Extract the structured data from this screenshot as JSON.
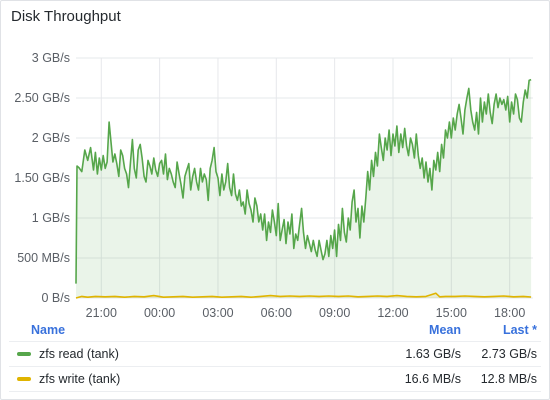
{
  "panel": {
    "title": "Disk Throughput"
  },
  "chart_data": {
    "type": "area",
    "title": "Disk Throughput",
    "y_ticks": [
      "0 B/s",
      "500 MB/s",
      "1 GB/s",
      "1.50 GB/s",
      "2 GB/s",
      "2.50 GB/s",
      "3 GB/s"
    ],
    "x_ticks": [
      "21:00",
      "00:00",
      "03:00",
      "06:00",
      "09:00",
      "12:00",
      "15:00",
      "18:00"
    ],
    "x_range_hours": [
      0,
      23.5
    ],
    "ylim_gbs": [
      0,
      3
    ],
    "series": [
      {
        "name": "zfs read (tank)",
        "color": "#56a64b",
        "points": [
          [
            0.0,
            0.18
          ],
          [
            0.05,
            1.65
          ],
          [
            0.15,
            1.63
          ],
          [
            0.3,
            1.58
          ],
          [
            0.45,
            1.85
          ],
          [
            0.6,
            1.72
          ],
          [
            0.75,
            1.88
          ],
          [
            0.9,
            1.6
          ],
          [
            1.0,
            1.82
          ],
          [
            1.1,
            1.55
          ],
          [
            1.2,
            1.75
          ],
          [
            1.3,
            1.6
          ],
          [
            1.4,
            1.78
          ],
          [
            1.5,
            1.62
          ],
          [
            1.6,
            1.7
          ],
          [
            1.7,
            2.2
          ],
          [
            1.8,
            1.95
          ],
          [
            1.9,
            1.7
          ],
          [
            2.0,
            1.8
          ],
          [
            2.1,
            1.68
          ],
          [
            2.2,
            1.52
          ],
          [
            2.3,
            1.85
          ],
          [
            2.4,
            1.78
          ],
          [
            2.5,
            1.62
          ],
          [
            2.6,
            1.55
          ],
          [
            2.7,
            1.38
          ],
          [
            2.8,
            1.7
          ],
          [
            2.9,
            1.98
          ],
          [
            3.0,
            1.62
          ],
          [
            3.1,
            1.5
          ],
          [
            3.2,
            1.85
          ],
          [
            3.3,
            1.92
          ],
          [
            3.4,
            1.75
          ],
          [
            3.5,
            1.52
          ],
          [
            3.6,
            1.45
          ],
          [
            3.7,
            1.72
          ],
          [
            3.8,
            1.65
          ],
          [
            3.9,
            1.55
          ],
          [
            4.0,
            1.75
          ],
          [
            4.1,
            1.6
          ],
          [
            4.2,
            1.52
          ],
          [
            4.3,
            1.68
          ],
          [
            4.4,
            1.72
          ],
          [
            4.5,
            1.55
          ],
          [
            4.6,
            1.8
          ],
          [
            4.7,
            1.48
          ],
          [
            4.8,
            1.62
          ],
          [
            4.9,
            1.55
          ],
          [
            5.0,
            1.45
          ],
          [
            5.1,
            1.38
          ],
          [
            5.2,
            1.7
          ],
          [
            5.3,
            1.55
          ],
          [
            5.4,
            1.42
          ],
          [
            5.5,
            1.25
          ],
          [
            5.6,
            1.52
          ],
          [
            5.7,
            1.6
          ],
          [
            5.8,
            1.68
          ],
          [
            5.9,
            1.35
          ],
          [
            6.0,
            1.52
          ],
          [
            6.1,
            1.62
          ],
          [
            6.2,
            1.45
          ],
          [
            6.3,
            1.35
          ],
          [
            6.4,
            1.62
          ],
          [
            6.5,
            1.45
          ],
          [
            6.6,
            1.55
          ],
          [
            6.7,
            1.48
          ],
          [
            6.8,
            1.22
          ],
          [
            6.9,
            1.62
          ],
          [
            7.0,
            1.72
          ],
          [
            7.1,
            1.88
          ],
          [
            7.2,
            1.58
          ],
          [
            7.3,
            1.5
          ],
          [
            7.4,
            1.28
          ],
          [
            7.5,
            1.55
          ],
          [
            7.6,
            1.35
          ],
          [
            7.7,
            1.45
          ],
          [
            7.8,
            1.68
          ],
          [
            7.9,
            1.38
          ],
          [
            8.0,
            1.28
          ],
          [
            8.1,
            1.55
          ],
          [
            8.2,
            1.3
          ],
          [
            8.3,
            1.22
          ],
          [
            8.4,
            1.35
          ],
          [
            8.5,
            1.15
          ],
          [
            8.6,
            1.2
          ],
          [
            8.7,
            1.05
          ],
          [
            8.8,
            1.35
          ],
          [
            8.9,
            1.18
          ],
          [
            9.0,
            1.1
          ],
          [
            9.1,
            0.95
          ],
          [
            9.2,
            1.25
          ],
          [
            9.3,
            1.15
          ],
          [
            9.4,
            0.95
          ],
          [
            9.5,
            1.05
          ],
          [
            9.6,
            0.85
          ],
          [
            9.7,
            1.05
          ],
          [
            9.8,
            0.72
          ],
          [
            9.9,
            0.95
          ],
          [
            10.0,
            0.82
          ],
          [
            10.1,
            1.1
          ],
          [
            10.2,
            0.95
          ],
          [
            10.3,
            0.78
          ],
          [
            10.4,
            1.18
          ],
          [
            10.5,
            0.72
          ],
          [
            10.6,
            0.85
          ],
          [
            10.7,
            0.98
          ],
          [
            10.8,
            0.68
          ],
          [
            10.9,
            0.95
          ],
          [
            11.0,
            0.8
          ],
          [
            11.1,
            1.05
          ],
          [
            11.2,
            0.62
          ],
          [
            11.3,
            0.8
          ],
          [
            11.4,
            0.72
          ],
          [
            11.5,
            0.92
          ],
          [
            11.6,
            1.12
          ],
          [
            11.7,
            0.82
          ],
          [
            11.8,
            0.62
          ],
          [
            11.9,
            0.78
          ],
          [
            12.0,
            0.68
          ],
          [
            12.1,
            0.58
          ],
          [
            12.2,
            0.72
          ],
          [
            12.3,
            0.6
          ],
          [
            12.4,
            0.52
          ],
          [
            12.5,
            0.72
          ],
          [
            12.6,
            0.6
          ],
          [
            12.7,
            0.48
          ],
          [
            12.8,
            0.55
          ],
          [
            12.9,
            0.72
          ],
          [
            13.0,
            0.52
          ],
          [
            13.1,
            0.78
          ],
          [
            13.2,
            0.62
          ],
          [
            13.3,
            0.85
          ],
          [
            13.4,
            0.52
          ],
          [
            13.5,
            0.92
          ],
          [
            13.6,
            0.72
          ],
          [
            13.7,
            1.12
          ],
          [
            13.8,
            0.82
          ],
          [
            13.9,
            0.7
          ],
          [
            14.0,
            1.0
          ],
          [
            14.1,
            0.85
          ],
          [
            14.2,
            1.2
          ],
          [
            14.3,
            1.35
          ],
          [
            14.4,
            0.95
          ],
          [
            14.5,
            1.12
          ],
          [
            14.6,
            0.75
          ],
          [
            14.7,
            1.15
          ],
          [
            14.8,
            0.95
          ],
          [
            14.9,
            1.25
          ],
          [
            15.0,
            1.58
          ],
          [
            15.1,
            1.35
          ],
          [
            15.2,
            1.72
          ],
          [
            15.3,
            1.52
          ],
          [
            15.4,
            1.82
          ],
          [
            15.5,
            1.65
          ],
          [
            15.6,
            2.05
          ],
          [
            15.7,
            1.88
          ],
          [
            15.8,
            1.72
          ],
          [
            15.9,
            2.0
          ],
          [
            16.0,
            1.85
          ],
          [
            16.1,
            2.1
          ],
          [
            16.2,
            1.78
          ],
          [
            16.3,
            2.05
          ],
          [
            16.4,
            1.9
          ],
          [
            16.5,
            2.15
          ],
          [
            16.6,
            1.82
          ],
          [
            16.7,
            2.05
          ],
          [
            16.8,
            1.88
          ],
          [
            16.9,
            2.12
          ],
          [
            17.0,
            1.9
          ],
          [
            17.1,
            1.78
          ],
          [
            17.2,
            2.0
          ],
          [
            17.3,
            1.92
          ],
          [
            17.4,
            1.75
          ],
          [
            17.5,
            2.05
          ],
          [
            17.6,
            1.78
          ],
          [
            17.7,
            1.62
          ],
          [
            17.8,
            1.75
          ],
          [
            17.9,
            1.5
          ],
          [
            18.0,
            1.7
          ],
          [
            18.1,
            1.45
          ],
          [
            18.2,
            1.62
          ],
          [
            18.3,
            1.35
          ],
          [
            18.4,
            1.72
          ],
          [
            18.5,
            1.6
          ],
          [
            18.6,
            1.82
          ],
          [
            18.7,
            1.58
          ],
          [
            18.8,
            1.92
          ],
          [
            18.9,
            1.75
          ],
          [
            19.0,
            2.1
          ],
          [
            19.1,
            2.0
          ],
          [
            19.2,
            2.2
          ],
          [
            19.3,
            2.0
          ],
          [
            19.4,
            2.25
          ],
          [
            19.5,
            2.1
          ],
          [
            19.6,
            2.3
          ],
          [
            19.7,
            2.42
          ],
          [
            19.8,
            2.25
          ],
          [
            19.9,
            2.05
          ],
          [
            20.0,
            2.35
          ],
          [
            20.1,
            2.5
          ],
          [
            20.2,
            2.62
          ],
          [
            20.3,
            2.35
          ],
          [
            20.4,
            2.2
          ],
          [
            20.5,
            2.1
          ],
          [
            20.6,
            2.32
          ],
          [
            20.7,
            2.05
          ],
          [
            20.8,
            2.5
          ],
          [
            20.9,
            2.2
          ],
          [
            21.0,
            2.45
          ],
          [
            21.1,
            2.3
          ],
          [
            21.2,
            2.55
          ],
          [
            21.3,
            2.32
          ],
          [
            21.4,
            2.18
          ],
          [
            21.5,
            2.42
          ],
          [
            21.6,
            2.55
          ],
          [
            21.7,
            2.38
          ],
          [
            21.8,
            2.5
          ],
          [
            21.9,
            2.42
          ],
          [
            22.0,
            2.48
          ],
          [
            22.1,
            2.35
          ],
          [
            22.2,
            2.52
          ],
          [
            22.3,
            2.2
          ],
          [
            22.4,
            2.45
          ],
          [
            22.5,
            2.3
          ],
          [
            22.6,
            2.55
          ],
          [
            22.7,
            2.48
          ],
          [
            22.8,
            2.25
          ],
          [
            22.9,
            2.2
          ],
          [
            23.0,
            2.45
          ],
          [
            23.1,
            2.6
          ],
          [
            23.2,
            2.5
          ],
          [
            23.3,
            2.72
          ],
          [
            23.4,
            2.73
          ]
        ]
      },
      {
        "name": "zfs write (tank)",
        "color": "#e0b400",
        "points": [
          [
            0.0,
            0.0
          ],
          [
            0.3,
            0.02
          ],
          [
            0.6,
            0.01
          ],
          [
            1.0,
            0.02
          ],
          [
            1.5,
            0.015
          ],
          [
            2.0,
            0.02
          ],
          [
            2.5,
            0.01
          ],
          [
            3.0,
            0.02
          ],
          [
            3.5,
            0.015
          ],
          [
            4.0,
            0.03
          ],
          [
            4.5,
            0.01
          ],
          [
            5.0,
            0.015
          ],
          [
            5.5,
            0.02
          ],
          [
            6.0,
            0.01
          ],
          [
            6.5,
            0.015
          ],
          [
            7.0,
            0.02
          ],
          [
            7.5,
            0.01
          ],
          [
            8.0,
            0.015
          ],
          [
            8.5,
            0.02
          ],
          [
            9.0,
            0.01
          ],
          [
            9.5,
            0.02
          ],
          [
            10.0,
            0.03
          ],
          [
            10.5,
            0.02
          ],
          [
            11.0,
            0.025
          ],
          [
            11.5,
            0.02
          ],
          [
            12.0,
            0.025
          ],
          [
            12.5,
            0.02
          ],
          [
            13.0,
            0.025
          ],
          [
            13.5,
            0.02
          ],
          [
            14.0,
            0.025
          ],
          [
            14.5,
            0.015
          ],
          [
            15.0,
            0.02
          ],
          [
            15.5,
            0.025
          ],
          [
            16.0,
            0.02
          ],
          [
            16.5,
            0.03
          ],
          [
            17.0,
            0.02
          ],
          [
            17.5,
            0.015
          ],
          [
            18.0,
            0.02
          ],
          [
            18.5,
            0.06
          ],
          [
            18.7,
            0.015
          ],
          [
            19.0,
            0.02
          ],
          [
            19.5,
            0.02
          ],
          [
            20.0,
            0.025
          ],
          [
            20.5,
            0.02
          ],
          [
            21.0,
            0.015
          ],
          [
            21.5,
            0.02
          ],
          [
            22.0,
            0.025
          ],
          [
            22.5,
            0.015
          ],
          [
            23.0,
            0.02
          ],
          [
            23.4,
            0.013
          ]
        ]
      }
    ]
  },
  "legend": {
    "header": {
      "name": "Name",
      "mean": "Mean",
      "last": "Last *"
    },
    "rows": [
      {
        "name": "zfs read (tank)",
        "mean": "1.63 GB/s",
        "last": "2.73 GB/s",
        "color": "#56a64b"
      },
      {
        "name": "zfs write (tank)",
        "mean": "16.6 MB/s",
        "last": "12.8 MB/s",
        "color": "#e0b400"
      }
    ]
  }
}
